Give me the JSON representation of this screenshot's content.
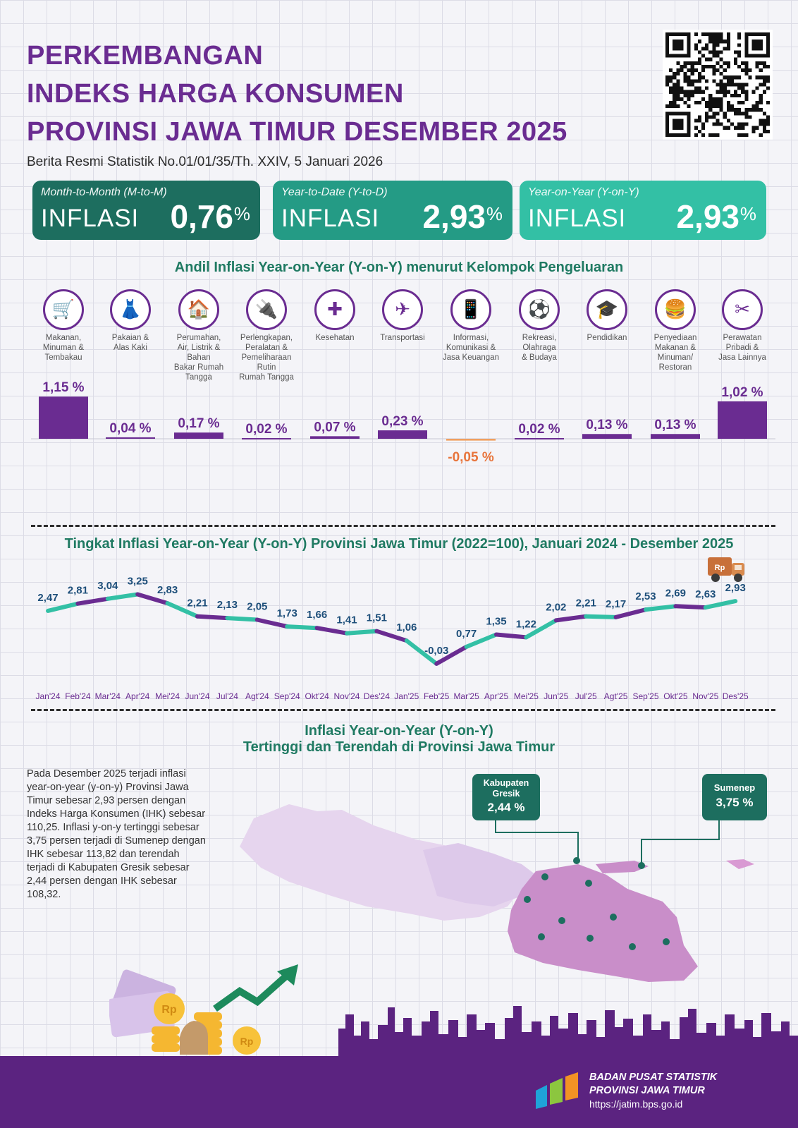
{
  "header": {
    "title_lines": [
      "PERKEMBANGAN",
      "INDEKS HARGA KONSUMEN",
      "PROVINSI JAWA TIMUR DESEMBER 2025"
    ],
    "subtitle": "Berita Resmi Statistik No.01/01/35/Th. XXIV, 5 Januari 2026"
  },
  "inflation_boxes": [
    {
      "caption": "Month-to-Month (M-to-M)",
      "label": "INFLASI",
      "value": "0,76",
      "unit": "%"
    },
    {
      "caption": "Year-to-Date (Y-to-D)",
      "label": "INFLASI",
      "value": "2,93",
      "unit": "%"
    },
    {
      "caption": "Year-on-Year (Y-on-Y)",
      "label": "INFLASI",
      "value": "2,93",
      "unit": "%"
    }
  ],
  "chart_data": [
    {
      "type": "bar",
      "title": "Andil Inflasi Year-on-Year (Y-on-Y) menurut Kelompok Pengeluaran",
      "categories": [
        "Makanan, Minuman & Tembakau",
        "Pakaian & Alas Kaki",
        "Perumahan, Air, Listrik & Bahan Bakar Rumah Tangga",
        "Perlengkapan, Peralatan & Pemeliharaan Rutin Rumah Tangga",
        "Kesehatan",
        "Transportasi",
        "Informasi, Komunikasi & Jasa Keuangan",
        "Rekreasi, Olahraga & Budaya",
        "Pendidikan",
        "Penyediaan Makanan & Minuman/ Restoran",
        "Perawatan Pribadi & Jasa Lainnya"
      ],
      "category_lines": [
        [
          "Makanan,",
          "Minuman &",
          "Tembakau"
        ],
        [
          "Pakaian &",
          "Alas Kaki"
        ],
        [
          "Perumahan,",
          "Air, Listrik &",
          "Bahan",
          "Bakar Rumah",
          "Tangga"
        ],
        [
          "Perlengkapan,",
          "Peralatan &",
          "Pemeliharaan",
          "Rutin",
          "Rumah Tangga"
        ],
        [
          "Kesehatan"
        ],
        [
          "Transportasi"
        ],
        [
          "Informasi,",
          "Komunikasi &",
          "Jasa Keuangan"
        ],
        [
          "Rekreasi,",
          "Olahraga",
          "& Budaya"
        ],
        [
          "Pendidikan"
        ],
        [
          "Penyediaan",
          "Makanan &",
          "Minuman/",
          "Restoran"
        ],
        [
          "Perawatan",
          "Pribadi &",
          "Jasa Lainnya"
        ]
      ],
      "icons": [
        "grocery-bag-icon",
        "dress-icon",
        "house-icon",
        "power-plug-icon",
        "first-aid-kit-icon",
        "airplane-icon",
        "smartphone-icon",
        "football-player-icon",
        "graduation-cap-icon",
        "burger-drink-icon",
        "scissors-comb-icon"
      ],
      "values": [
        1.15,
        0.04,
        0.17,
        0.02,
        0.07,
        0.23,
        -0.05,
        0.02,
        0.13,
        0.13,
        1.02
      ],
      "value_labels": [
        "1,15 %",
        "0,04 %",
        "0,17 %",
        "0,02 %",
        "0,07 %",
        "0,23 %",
        "-0,05 %",
        "0,02 %",
        "0,13 %",
        "0,13 %",
        "1,02 %"
      ],
      "colors": {
        "positive": "#6a2c91",
        "negative": "#f0a060",
        "negative_label": "#e8743b"
      }
    },
    {
      "type": "line",
      "title": "Tingkat Inflasi Year-on-Year (Y-on-Y) Provinsi Jawa Timur (2022=100), Januari 2024 - Desember 2025",
      "x": [
        "Jan'24",
        "Feb'24",
        "Mar'24",
        "Apr'24",
        "Mei'24",
        "Jun'24",
        "Jul'24",
        "Agt'24",
        "Sep'24",
        "Okt'24",
        "Nov'24",
        "Des'24",
        "Jan'25",
        "Feb'25",
        "Mar'25",
        "Apr'25",
        "Mei'25",
        "Jun'25",
        "Jul'25",
        "Agt'25",
        "Sep'25",
        "Okt'25",
        "Nov'25",
        "Des'25"
      ],
      "values": [
        2.47,
        2.81,
        3.04,
        3.25,
        2.83,
        2.21,
        2.13,
        2.05,
        1.73,
        1.66,
        1.41,
        1.51,
        1.06,
        -0.03,
        0.77,
        1.35,
        1.22,
        2.02,
        2.21,
        2.17,
        2.53,
        2.69,
        2.63,
        2.93
      ],
      "value_labels": [
        "2,47",
        "2,81",
        "3,04",
        "3,25",
        "2,83",
        "2,21",
        "2,13",
        "2,05",
        "1,73",
        "1,66",
        "1,41",
        "1,51",
        "1,06",
        "-0,03",
        "0,77",
        "1,35",
        "1,22",
        "2,02",
        "2,21",
        "2,17",
        "2,53",
        "2,69",
        "2,63",
        "2,93"
      ],
      "colors": {
        "segment_a": "#33c0a5",
        "segment_b": "#6a2c91",
        "labels": "#1e4f7a",
        "axis": "#6a2c91"
      }
    }
  ],
  "truck_icon_text": "Rp",
  "map_section": {
    "title_line1": "Inflasi Year-on-Year (Y-on-Y)",
    "title_line2": "Tertinggi dan Terendah di Provinsi Jawa Timur",
    "description": "Pada Desember 2025 terjadi inflasi year-on-year (y-on-y) Provinsi Jawa Timur sebesar 2,93 persen dengan Indeks Harga Konsumen (IHK) sebesar 110,25. Inflasi y-on-y tertinggi sebesar 3,75 persen terjadi di Sumenep dengan IHK sebesar 113,82 dan terendah terjadi di Kabupaten Gresik sebesar 2,44 persen dengan IHK sebesar 108,32.",
    "lowest": {
      "name_line1": "Kabupaten",
      "name_line2": "Gresik",
      "value": "2,44 %"
    },
    "highest": {
      "name": "Sumenep",
      "value": "3,75 %"
    },
    "coin_text": "Rp"
  },
  "footer": {
    "org_line1": "BADAN PUSAT STATISTIK",
    "org_line2": "PROVINSI JAWA TIMUR",
    "url": "https://jatim.bps.go.id"
  }
}
